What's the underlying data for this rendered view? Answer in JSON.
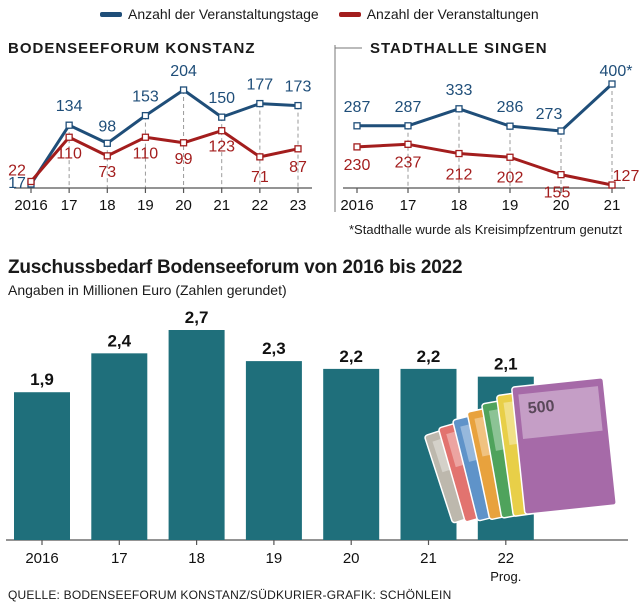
{
  "legend": {
    "series1": "Anzahl der Veranstaltungstage",
    "series2": "Anzahl der Veranstaltungen"
  },
  "colors": {
    "blue": "#1f4e79",
    "red": "#a31d1d",
    "teal": "#1f6f7b",
    "grid": "#9a9a9a"
  },
  "chart_data": [
    {
      "type": "line",
      "title": "BODENSEEFORUM KONSTANZ",
      "categories": [
        "2016",
        "17",
        "18",
        "19",
        "20",
        "21",
        "22",
        "23"
      ],
      "series": [
        {
          "name": "Anzahl der Veranstaltungstage",
          "values": [
            17,
            134,
            98,
            153,
            204,
            150,
            177,
            173
          ],
          "labels": [
            "17",
            "134",
            "98",
            "153",
            "204",
            "150",
            "177",
            "173"
          ]
        },
        {
          "name": "Anzahl der Veranstaltungen",
          "values": [
            22,
            110,
            73,
            110,
            99,
            123,
            71,
            87
          ],
          "labels": [
            "22",
            "110",
            "73",
            "110",
            "99",
            "123",
            "71",
            "87"
          ]
        }
      ]
    },
    {
      "type": "line",
      "title": "STADTHALLE SINGEN",
      "categories": [
        "2016",
        "17",
        "18",
        "19",
        "20",
        "21"
      ],
      "series": [
        {
          "name": "Anzahl der Veranstaltungstage",
          "values": [
            287,
            287,
            333,
            286,
            273,
            400
          ],
          "labels": [
            "287",
            "287",
            "333",
            "286",
            "273",
            "400*"
          ]
        },
        {
          "name": "Anzahl der Veranstaltungen",
          "values": [
            230,
            237,
            212,
            202,
            155,
            127
          ],
          "labels": [
            "230",
            "237",
            "212",
            "202",
            "155",
            "127"
          ]
        }
      ],
      "footnote": "*Stadthalle wurde als Kreisimpfzentrum genutzt"
    },
    {
      "type": "bar",
      "title": "Zuschussbedarf Bodenseeforum von 2016 bis 2022",
      "subtitle": "Angaben in Millionen Euro (Zahlen gerundet)",
      "categories": [
        "2016",
        "17",
        "18",
        "19",
        "20",
        "21",
        "22"
      ],
      "category_notes": [
        "",
        "",
        "",
        "",
        "",
        "",
        "Prog."
      ],
      "values": [
        1.9,
        2.4,
        2.7,
        2.3,
        2.2,
        2.2,
        2.1
      ],
      "labels": [
        "1,9",
        "2,4",
        "2,7",
        "2,3",
        "2,2",
        "2,2",
        "2,1"
      ],
      "ylim": [
        0,
        2.7
      ]
    }
  ],
  "banknotes": [
    "5",
    "10",
    "20",
    "50",
    "100",
    "200",
    "500"
  ],
  "source": "QUELLE: BODENSEEFORUM KONSTANZ/SÜDKURIER-GRAFIK: SCHÖNLEIN"
}
